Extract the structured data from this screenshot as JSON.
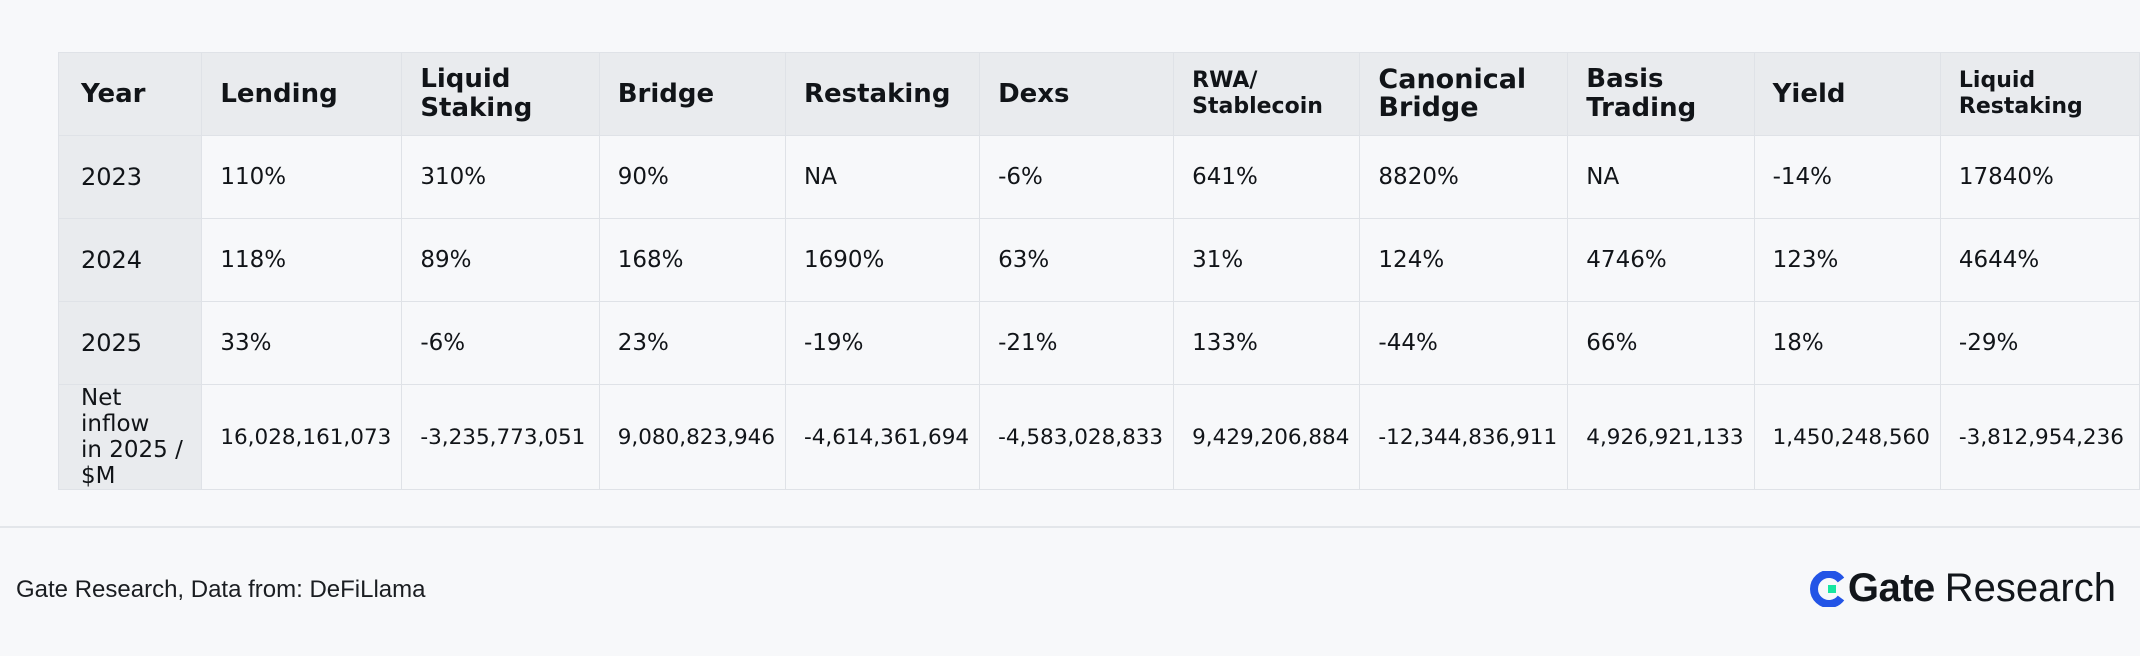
{
  "table": {
    "headers": [
      "Year",
      "Lending",
      "Liquid Staking",
      "Bridge",
      "Restaking",
      "Dexs",
      "RWA/\nStablecoin",
      "Canonical\nBridge",
      "Basis Trading",
      "Yield",
      "Liquid Restaking"
    ],
    "rows": [
      {
        "label": "2023",
        "cells": [
          "110%",
          "310%",
          "90%",
          "NA",
          "-6%",
          "641%",
          "8820%",
          "NA",
          "-14%",
          "17840%"
        ]
      },
      {
        "label": "2024",
        "cells": [
          "118%",
          "89%",
          "168%",
          "1690%",
          "63%",
          "31%",
          "124%",
          "4746%",
          "123%",
          "4644%"
        ]
      },
      {
        "label": "2025",
        "cells": [
          "33%",
          "-6%",
          "23%",
          "-19%",
          "-21%",
          "133%",
          "-44%",
          "66%",
          "18%",
          "-29%"
        ]
      },
      {
        "label": "Net inflow\nin 2025 / $M",
        "cells": [
          "16,028,161,073",
          "-3,235,773,051",
          "9,080,823,946",
          "-4,614,361,694",
          "-4,583,028,833",
          "9,429,206,884",
          "-12,344,836,911",
          "4,926,921,133",
          "1,450,248,560",
          "-3,812,954,236"
        ]
      }
    ]
  },
  "footer": {
    "source": "Gate Research, Data from: DeFiLlama",
    "brand_gate": "Gate",
    "brand_research": "Research",
    "logo_icon": "gate-logo-icon",
    "logo_colors": {
      "blue": "#2354e6",
      "green": "#17e6a1"
    }
  }
}
